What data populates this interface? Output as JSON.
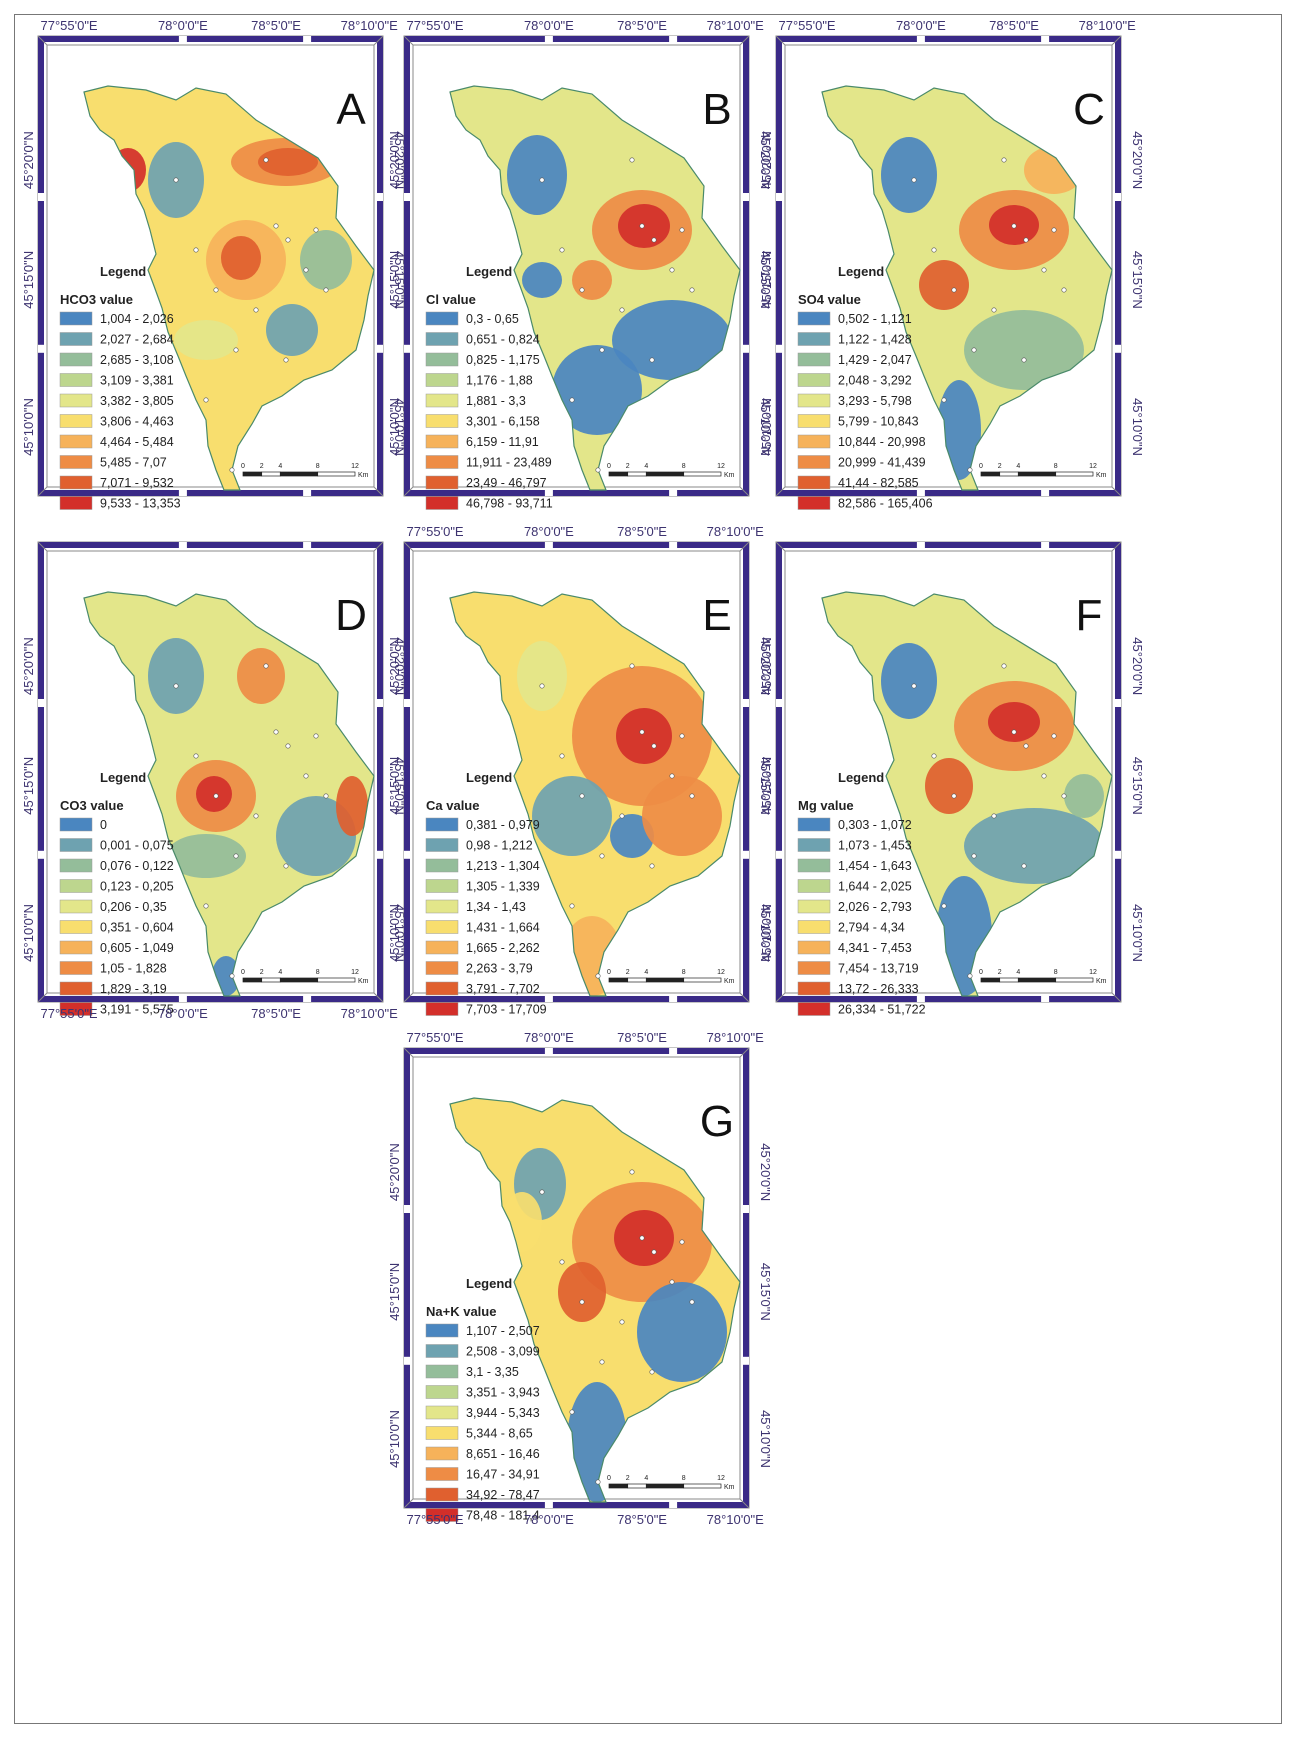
{
  "figure": {
    "lon_ticks": [
      "77°55'0\"E",
      "78°0'0\"E",
      "78°5'0\"E",
      "78°10'0\"E"
    ],
    "lat_ticks": [
      "45°20'0\"N",
      "45°15'0\"N",
      "45°10'0\"N"
    ],
    "legend_title": "Legend",
    "scale_ticks": [
      "0",
      "2",
      "4",
      "8",
      "12"
    ],
    "scale_unit": "Km",
    "class_colors": [
      "#4a86c0",
      "#6ea2b0",
      "#94bd9a",
      "#bdd68e",
      "#e3e68a",
      "#f8de6e",
      "#f6b25a",
      "#ee8c45",
      "#e0602f",
      "#d32f2a"
    ],
    "colors": {
      "frame": "#3a2a87",
      "coord_text": "#3d3370",
      "background": "#ffffff"
    }
  },
  "panels": [
    {
      "letter": "A",
      "legend_header": "HCO3 value",
      "classes": [
        "1,004 - 2,026",
        "2,027 - 2,684",
        "2,685 - 3,108",
        "3,109 - 3,381",
        "3,382 - 3,805",
        "3,806 - 4,463",
        "4,464 - 5,484",
        "5,485 - 7,07",
        "7,071 - 9,532",
        "9,533 - 13,353"
      ]
    },
    {
      "letter": "B",
      "legend_header": "Cl value",
      "classes": [
        "0,3 - 0,65",
        "0,651 - 0,824",
        "0,825 - 1,175",
        "1,176 - 1,88",
        "1,881 - 3,3",
        "3,301 - 6,158",
        "6,159 - 11,91",
        "11,911 - 23,489",
        "23,49 - 46,797",
        "46,798 - 93,711"
      ]
    },
    {
      "letter": "C",
      "legend_header": "SO4 value",
      "classes": [
        "0,502 - 1,121",
        "1,122 - 1,428",
        "1,429 - 2,047",
        "2,048 - 3,292",
        "3,293 - 5,798",
        "5,799 - 10,843",
        "10,844 - 20,998",
        "20,999 - 41,439",
        "41,44 - 82,585",
        "82,586 - 165,406"
      ]
    },
    {
      "letter": "D",
      "legend_header": "CO3 value",
      "classes": [
        "0",
        "0,001 - 0,075",
        "0,076 - 0,122",
        "0,123 - 0,205",
        "0,206 - 0,35",
        "0,351 - 0,604",
        "0,605 - 1,049",
        "1,05 - 1,828",
        "1,829 - 3,19",
        "3,191 - 5,575"
      ]
    },
    {
      "letter": "E",
      "legend_header": "Ca value",
      "classes": [
        "0,381 - 0,979",
        "0,98 - 1,212",
        "1,213 - 1,304",
        "1,305 - 1,339",
        "1,34 - 1,43",
        "1,431 - 1,664",
        "1,665 - 2,262",
        "2,263 - 3,79",
        "3,791 - 7,702",
        "7,703 - 17,709"
      ]
    },
    {
      "letter": "F",
      "legend_header": "Mg value",
      "classes": [
        "0,303 - 1,072",
        "1,073 - 1,453",
        "1,454 - 1,643",
        "1,644 - 2,025",
        "2,026 - 2,793",
        "2,794 - 4,34",
        "4,341 - 7,453",
        "7,454 - 13,719",
        "13,72 - 26,333",
        "26,334 - 51,722"
      ]
    },
    {
      "letter": "G",
      "legend_header": "Na+K value",
      "classes": [
        "1,107 - 2,507",
        "2,508 - 3,099",
        "3,1 - 3,35",
        "3,351 - 3,943",
        "3,944 - 5,343",
        "5,344 - 8,65",
        "8,651 - 16,46",
        "16,47 - 34,91",
        "34,92 - 78,47",
        "78,48 - 181,4"
      ]
    }
  ]
}
